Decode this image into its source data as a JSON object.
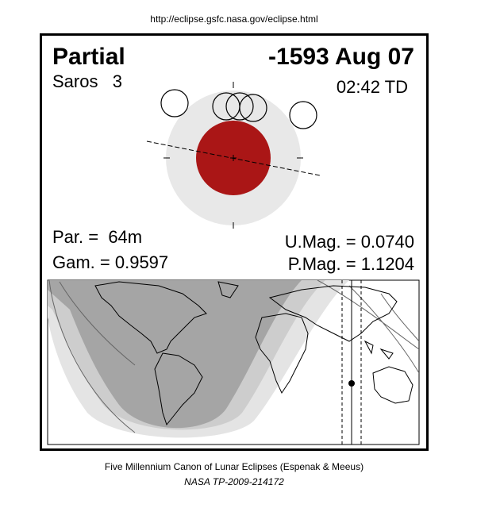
{
  "header": {
    "url": "http://eclipse.gsfc.nasa.gov/eclipse.html"
  },
  "panel": {
    "type": "Partial",
    "date": "-1593 Aug 07",
    "saros": "Saros   3",
    "time": "02:42 TD"
  },
  "stats": {
    "par": "Par. =  64m",
    "gam": "Gam. = 0.9597",
    "umag": "U.Mag. = 0.0740",
    "pmag": "P.Mag. = 1.1204"
  },
  "footer": {
    "canon": "Five Millennium Canon of Lunar Eclipses (Espenak & Meeus)",
    "ref": "NASA TP-2009-214172"
  }
}
